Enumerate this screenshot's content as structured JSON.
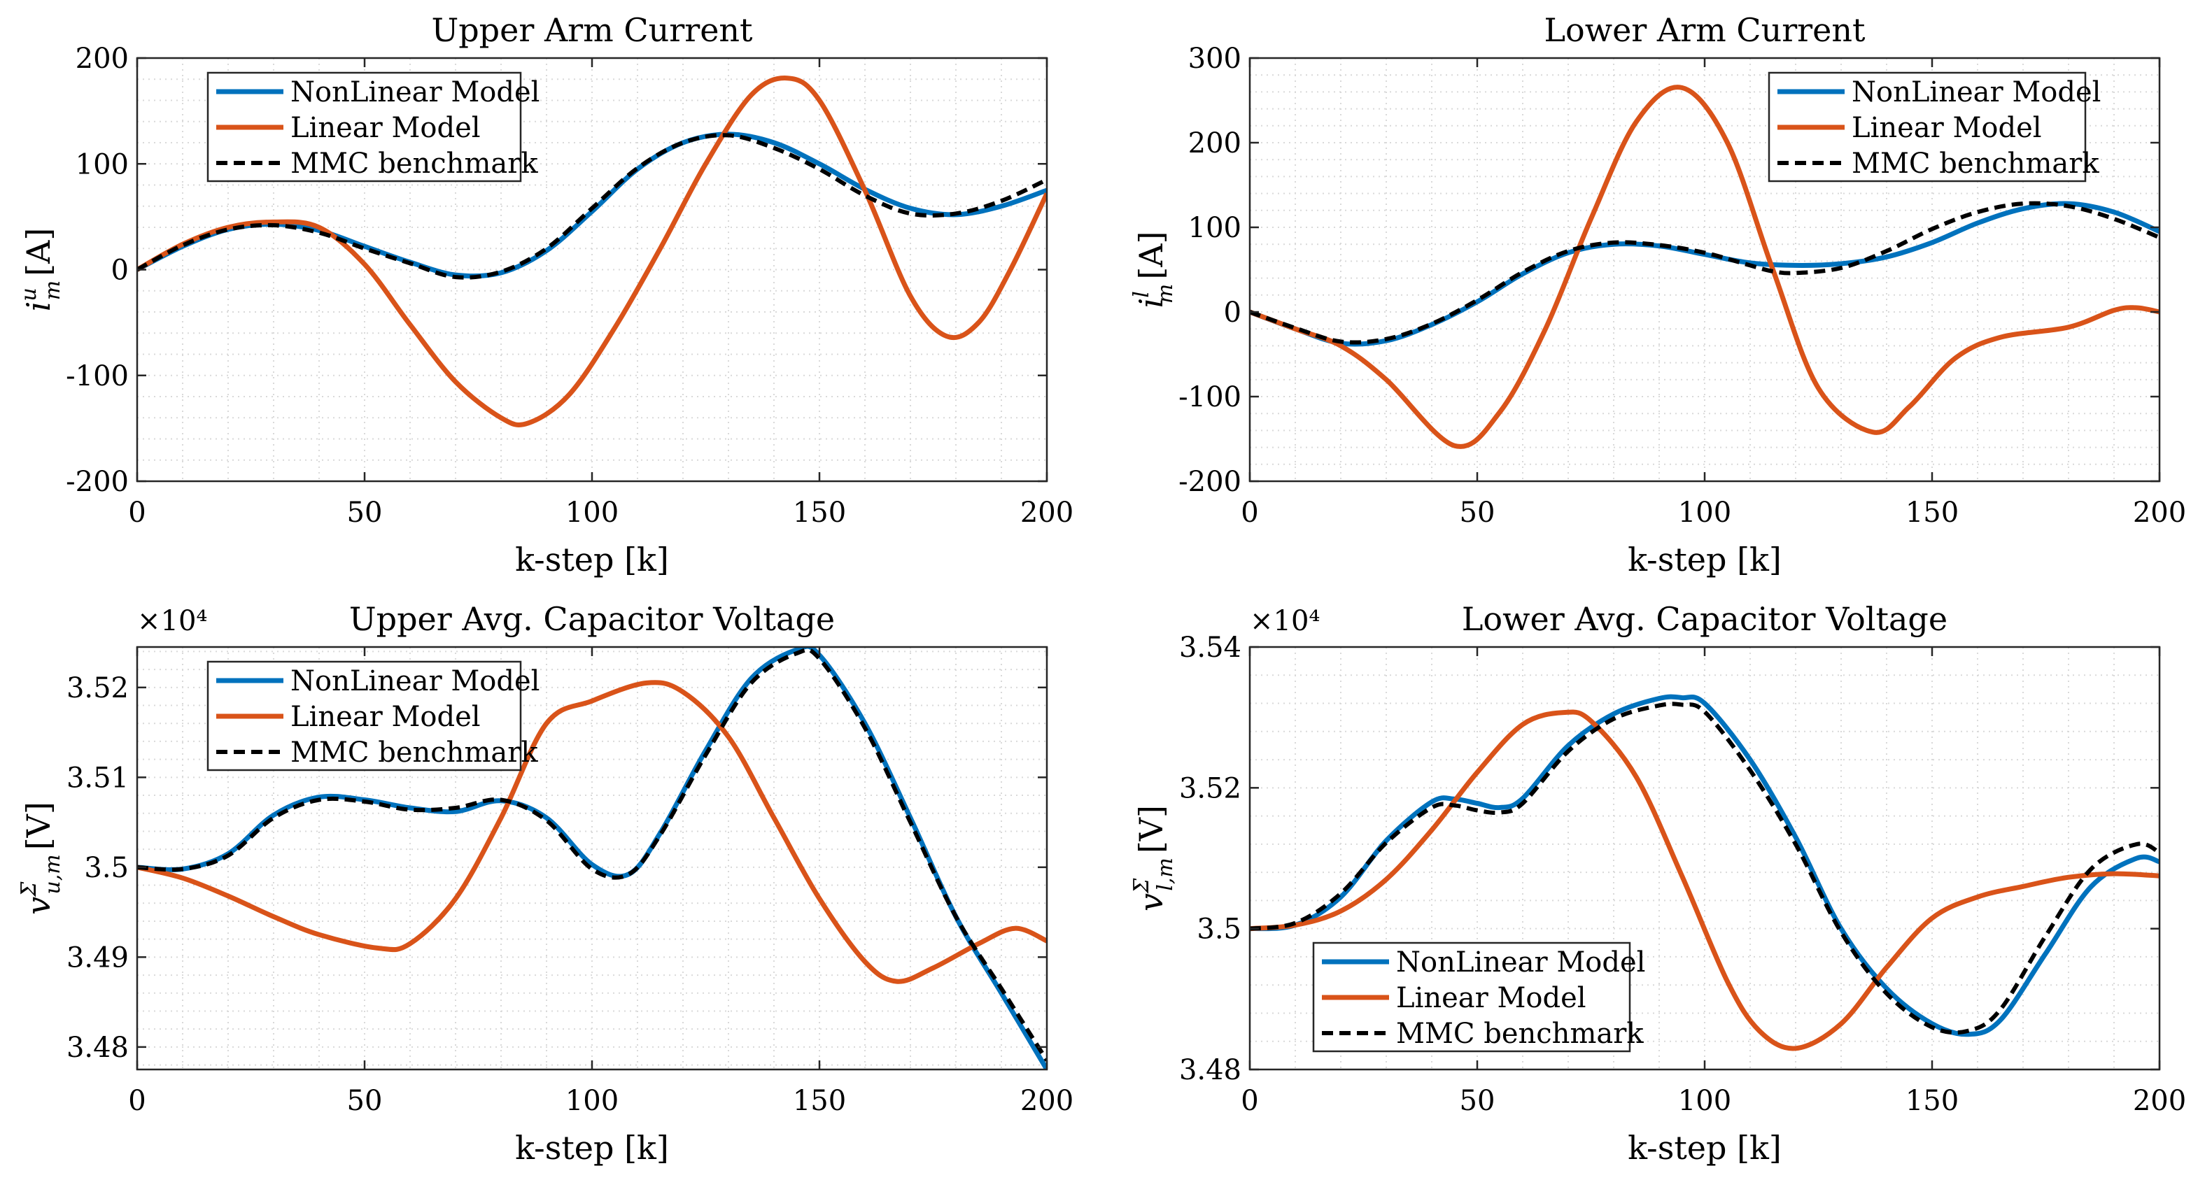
{
  "colors": {
    "nonlinear": "#0072BD",
    "linear": "#D95319",
    "benchmark": "#000000",
    "grid": "#d9d9d9",
    "axis": "#262626"
  },
  "chart_data": [
    {
      "id": "upper-arm-current",
      "type": "line",
      "title": "Upper Arm Current",
      "xlabel": "k-step [k]",
      "ylabel": "i_m^u [A]",
      "ylabel_main": "i",
      "ylabel_sup": "u",
      "ylabel_sub": "m",
      "ylabel_unit": "[A]",
      "exponent_label": "",
      "xlim": [
        0,
        200
      ],
      "ylim": [
        -200,
        200
      ],
      "xticks": [
        0,
        50,
        100,
        150,
        200
      ],
      "xtick_labels": [
        "0",
        "50",
        "100",
        "150",
        "200"
      ],
      "yticks": [
        -200,
        -100,
        0,
        100,
        200
      ],
      "ytick_labels": [
        "-200",
        "-100",
        "0",
        "100",
        "200"
      ],
      "grid": true,
      "legend_position": "top-left",
      "legend": [
        "NonLinear Model",
        "Linear Model",
        "MMC benchmark"
      ],
      "series": [
        {
          "name": "NonLinear Model",
          "x": [
            0,
            10,
            20,
            30,
            40,
            50,
            60,
            70,
            80,
            90,
            100,
            110,
            120,
            130,
            140,
            150,
            160,
            170,
            180,
            190,
            200
          ],
          "y": [
            0,
            22,
            38,
            43,
            37,
            22,
            7,
            -5,
            -3,
            18,
            55,
            95,
            120,
            128,
            120,
            100,
            76,
            58,
            52,
            60,
            75
          ]
        },
        {
          "name": "Linear Model",
          "x": [
            0,
            10,
            20,
            30,
            40,
            50,
            60,
            70,
            80,
            86,
            95,
            105,
            115,
            125,
            135,
            143,
            150,
            160,
            170,
            178,
            185,
            192,
            200
          ],
          "y": [
            0,
            24,
            40,
            45,
            40,
            5,
            -52,
            -106,
            -140,
            -145,
            -118,
            -55,
            20,
            100,
            165,
            181,
            160,
            75,
            -25,
            -63,
            -50,
            0,
            72
          ]
        },
        {
          "name": "MMC benchmark",
          "x": [
            0,
            10,
            20,
            30,
            40,
            50,
            60,
            70,
            80,
            90,
            100,
            110,
            120,
            130,
            140,
            150,
            160,
            170,
            180,
            190,
            200
          ],
          "y": [
            0,
            23,
            38,
            42,
            35,
            20,
            6,
            -7,
            -2,
            20,
            58,
            96,
            120,
            127,
            115,
            95,
            70,
            53,
            53,
            65,
            85
          ]
        }
      ]
    },
    {
      "id": "lower-arm-current",
      "type": "line",
      "title": "Lower Arm Current",
      "xlabel": "k-step [k]",
      "ylabel": "i_m^l [A]",
      "ylabel_main": "i",
      "ylabel_sup": "l",
      "ylabel_sub": "m",
      "ylabel_unit": "[A]",
      "exponent_label": "",
      "xlim": [
        0,
        200
      ],
      "ylim": [
        -200,
        300
      ],
      "xticks": [
        0,
        50,
        100,
        150,
        200
      ],
      "xtick_labels": [
        "0",
        "50",
        "100",
        "150",
        "200"
      ],
      "yticks": [
        -200,
        -100,
        0,
        100,
        200,
        300
      ],
      "ytick_labels": [
        "-200",
        "-100",
        "0",
        "100",
        "200",
        "300"
      ],
      "grid": true,
      "legend_position": "top-right",
      "legend": [
        "NonLinear Model",
        "Linear Model",
        "MMC benchmark"
      ],
      "series": [
        {
          "name": "NonLinear Model",
          "x": [
            0,
            10,
            20,
            30,
            40,
            50,
            60,
            70,
            80,
            90,
            100,
            110,
            120,
            130,
            140,
            150,
            160,
            170,
            180,
            190,
            200
          ],
          "y": [
            0,
            -20,
            -37,
            -34,
            -15,
            12,
            45,
            70,
            80,
            78,
            68,
            58,
            55,
            57,
            65,
            82,
            105,
            122,
            128,
            118,
            95
          ]
        },
        {
          "name": "Linear Model",
          "x": [
            0,
            10,
            20,
            30,
            45,
            55,
            65,
            75,
            85,
            95,
            105,
            115,
            125,
            137,
            145,
            155,
            165,
            180,
            190,
            195,
            200
          ],
          "y": [
            0,
            -20,
            -40,
            -80,
            -158,
            -118,
            -20,
            110,
            225,
            265,
            200,
            50,
            -90,
            -142,
            -112,
            -55,
            -30,
            -18,
            2,
            5,
            0
          ]
        },
        {
          "name": "MMC benchmark",
          "x": [
            0,
            10,
            20,
            30,
            40,
            50,
            60,
            70,
            80,
            90,
            100,
            110,
            115,
            120,
            130,
            140,
            150,
            160,
            170,
            180,
            190,
            200
          ],
          "y": [
            0,
            -19,
            -35,
            -32,
            -14,
            14,
            47,
            72,
            82,
            79,
            70,
            55,
            48,
            46,
            52,
            72,
            98,
            118,
            128,
            125,
            110,
            88
          ]
        }
      ]
    },
    {
      "id": "upper-avg-capacitor-voltage",
      "type": "line",
      "title": "Upper Avg. Capacitor Voltage",
      "xlabel": "k-step [k]",
      "ylabel": "v_{u,m}^Σ [V]",
      "ylabel_main": "v",
      "ylabel_sup": "Σ",
      "ylabel_sub": "u,m",
      "ylabel_unit": "[V]",
      "exponent_label": "×10⁴",
      "xlim": [
        0,
        200
      ],
      "ylim": [
        3.4775,
        3.5245
      ],
      "xticks": [
        0,
        50,
        100,
        150,
        200
      ],
      "xtick_labels": [
        "0",
        "50",
        "100",
        "150",
        "200"
      ],
      "yticks": [
        3.48,
        3.49,
        3.5,
        3.51,
        3.52
      ],
      "ytick_labels": [
        "3.48",
        "3.49",
        "3.5",
        "3.51",
        "3.52"
      ],
      "grid": true,
      "legend_position": "top-left",
      "legend": [
        "NonLinear Model",
        "Linear Model",
        "MMC benchmark"
      ],
      "series": [
        {
          "name": "NonLinear Model",
          "x": [
            0,
            10,
            20,
            30,
            40,
            50,
            60,
            70,
            80,
            90,
            100,
            108,
            115,
            125,
            135,
            145,
            150,
            160,
            170,
            180,
            190,
            200
          ],
          "y": [
            3.5,
            3.4998,
            3.5015,
            3.5058,
            3.5078,
            3.5075,
            3.5066,
            3.5062,
            3.5074,
            3.5055,
            3.5003,
            3.4992,
            3.5038,
            3.513,
            3.521,
            3.5242,
            3.5236,
            3.516,
            3.5055,
            3.4945,
            3.486,
            3.4775
          ]
        },
        {
          "name": "Linear Model",
          "x": [
            0,
            10,
            20,
            30,
            40,
            53,
            60,
            70,
            80,
            90,
            100,
            112,
            120,
            130,
            140,
            150,
            160,
            167,
            175,
            185,
            193,
            200
          ],
          "y": [
            3.5,
            3.4988,
            3.4968,
            3.4945,
            3.4925,
            3.491,
            3.4915,
            3.4965,
            3.5055,
            3.516,
            3.5185,
            3.5205,
            3.5195,
            3.5145,
            3.5055,
            3.4965,
            3.4895,
            3.4873,
            3.4888,
            3.4915,
            3.4932,
            3.4918
          ]
        },
        {
          "name": "MMC benchmark",
          "x": [
            0,
            10,
            20,
            30,
            40,
            50,
            60,
            70,
            80,
            90,
            100,
            108,
            115,
            125,
            135,
            145,
            150,
            160,
            170,
            180,
            190,
            200
          ],
          "y": [
            3.5,
            3.4998,
            3.5013,
            3.5055,
            3.5075,
            3.5073,
            3.5064,
            3.5066,
            3.5075,
            3.5052,
            3.4998,
            3.4992,
            3.5036,
            3.5125,
            3.5205,
            3.5238,
            3.5232,
            3.5155,
            3.505,
            3.4945,
            3.4865,
            3.4785
          ]
        }
      ]
    },
    {
      "id": "lower-avg-capacitor-voltage",
      "type": "line",
      "title": "Lower Avg. Capacitor Voltage",
      "xlabel": "k-step [k]",
      "ylabel": "v_{l,m}^Σ [V]",
      "ylabel_main": "v",
      "ylabel_sup": "Σ",
      "ylabel_sub": "l,m",
      "ylabel_unit": "[V]",
      "exponent_label": "×10⁴",
      "xlim": [
        0,
        200
      ],
      "ylim": [
        3.48,
        3.54
      ],
      "xticks": [
        0,
        50,
        100,
        150,
        200
      ],
      "xtick_labels": [
        "0",
        "50",
        "100",
        "150",
        "200"
      ],
      "yticks": [
        3.48,
        3.5,
        3.52,
        3.54
      ],
      "ytick_labels": [
        "3.48",
        "3.5",
        "3.52",
        "3.54"
      ],
      "grid": true,
      "legend_position": "bottom-left",
      "legend": [
        "NonLinear Model",
        "Linear Model",
        "MMC benchmark"
      ],
      "series": [
        {
          "name": "NonLinear Model",
          "x": [
            0,
            10,
            20,
            30,
            40,
            45,
            50,
            55,
            60,
            70,
            80,
            90,
            95,
            100,
            110,
            120,
            130,
            140,
            150,
            158,
            165,
            175,
            185,
            195,
            200
          ],
          "y": [
            3.5,
            3.5005,
            3.5045,
            3.5125,
            3.518,
            3.5184,
            3.5178,
            3.5172,
            3.5185,
            3.526,
            3.5305,
            3.5327,
            3.5328,
            3.532,
            3.524,
            3.513,
            3.5,
            3.4915,
            3.4865,
            3.485,
            3.487,
            3.4965,
            3.506,
            3.51,
            3.5095
          ]
        },
        {
          "name": "Linear Model",
          "x": [
            0,
            10,
            20,
            30,
            40,
            50,
            60,
            69,
            75,
            85,
            95,
            105,
            112,
            120,
            130,
            140,
            150,
            160,
            170,
            180,
            190,
            200
          ],
          "y": [
            3.5,
            3.5005,
            3.5025,
            3.507,
            3.514,
            3.5222,
            3.529,
            3.5307,
            3.5295,
            3.5215,
            3.5075,
            3.4925,
            3.4855,
            3.483,
            3.4865,
            3.4945,
            3.5015,
            3.5045,
            3.506,
            3.5073,
            3.5078,
            3.5075
          ]
        },
        {
          "name": "MMC benchmark",
          "x": [
            0,
            10,
            20,
            30,
            40,
            45,
            50,
            55,
            60,
            70,
            80,
            90,
            95,
            100,
            110,
            120,
            130,
            140,
            150,
            158,
            165,
            175,
            185,
            195,
            200
          ],
          "y": [
            3.5,
            3.5008,
            3.505,
            3.5122,
            3.5172,
            3.5175,
            3.5168,
            3.5165,
            3.5178,
            3.5252,
            3.5298,
            3.5317,
            3.5318,
            3.5308,
            3.5225,
            3.512,
            3.4995,
            3.4908,
            3.486,
            3.4855,
            3.4885,
            3.499,
            3.5085,
            3.512,
            3.5108
          ]
        }
      ]
    }
  ]
}
